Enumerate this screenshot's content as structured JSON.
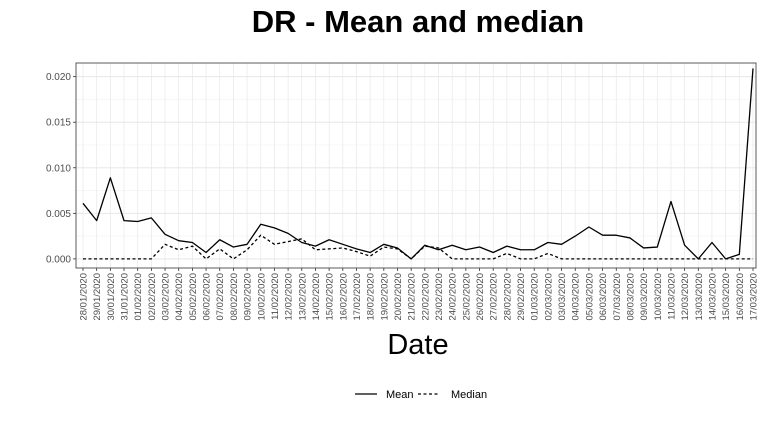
{
  "chart_data": {
    "type": "line",
    "title": "DR - Mean and median",
    "xlabel": "Date",
    "ylabel": "",
    "ylim": [
      -0.001,
      0.0215
    ],
    "y_ticks": [
      "0.000",
      "0.005",
      "0.010",
      "0.015",
      "0.020"
    ],
    "y_tick_values": [
      0,
      0.005,
      0.01,
      0.015,
      0.02
    ],
    "grid": true,
    "legend_position": "bottom",
    "categories": [
      "28/01/2020",
      "29/01/2020",
      "30/01/2020",
      "31/01/2020",
      "01/02/2020",
      "02/02/2020",
      "03/02/2020",
      "04/02/2020",
      "05/02/2020",
      "06/02/2020",
      "07/02/2020",
      "08/02/2020",
      "09/02/2020",
      "10/02/2020",
      "11/02/2020",
      "12/02/2020",
      "13/02/2020",
      "14/02/2020",
      "15/02/2020",
      "16/02/2020",
      "17/02/2020",
      "18/02/2020",
      "19/02/2020",
      "20/02/2020",
      "21/02/2020",
      "22/02/2020",
      "23/02/2020",
      "24/02/2020",
      "25/02/2020",
      "26/02/2020",
      "27/02/2020",
      "28/02/2020",
      "29/02/2020",
      "01/03/2020",
      "02/03/2020",
      "03/03/2020",
      "04/03/2020",
      "05/03/2020",
      "06/03/2020",
      "07/03/2020",
      "08/03/2020",
      "09/03/2020",
      "10/03/2020",
      "11/03/2020",
      "12/03/2020",
      "13/03/2020",
      "14/03/2020",
      "15/03/2020",
      "16/03/2020",
      "17/03/2020"
    ],
    "series": [
      {
        "name": "Mean",
        "line_style": "solid",
        "values": [
          0.0061,
          0.0042,
          0.0089,
          0.0042,
          0.0041,
          0.0045,
          0.0027,
          0.002,
          0.0018,
          0.0007,
          0.0021,
          0.0013,
          0.0016,
          0.0038,
          0.0034,
          0.0028,
          0.0018,
          0.0014,
          0.0021,
          0.0016,
          0.0011,
          0.0007,
          0.0016,
          0.0012,
          0.0,
          0.0015,
          0.001,
          0.0015,
          0.001,
          0.0013,
          0.0007,
          0.0014,
          0.001,
          0.001,
          0.0018,
          0.0016,
          0.0025,
          0.0035,
          0.0026,
          0.0026,
          0.0023,
          0.0012,
          0.0013,
          0.0063,
          0.0015,
          0.0,
          0.0018,
          0.0,
          0.0005,
          0.0209
        ]
      },
      {
        "name": "Median",
        "line_style": "dashed",
        "values": [
          0,
          0,
          0,
          0,
          0,
          0,
          0.0016,
          0.001,
          0.0014,
          0.0,
          0.0011,
          0.0,
          0.001,
          0.0026,
          0.0016,
          0.0019,
          0.0022,
          0.001,
          0.0011,
          0.0012,
          0.0008,
          0.0003,
          0.0013,
          0.0011,
          0.0,
          0.0014,
          0.0012,
          0.0,
          0.0,
          0.0,
          0.0,
          0.0006,
          0.0,
          0.0,
          0.0006,
          0.0,
          0.0,
          0,
          0,
          0,
          0,
          0,
          0,
          0,
          0,
          0,
          0,
          0,
          0,
          0
        ]
      }
    ]
  }
}
